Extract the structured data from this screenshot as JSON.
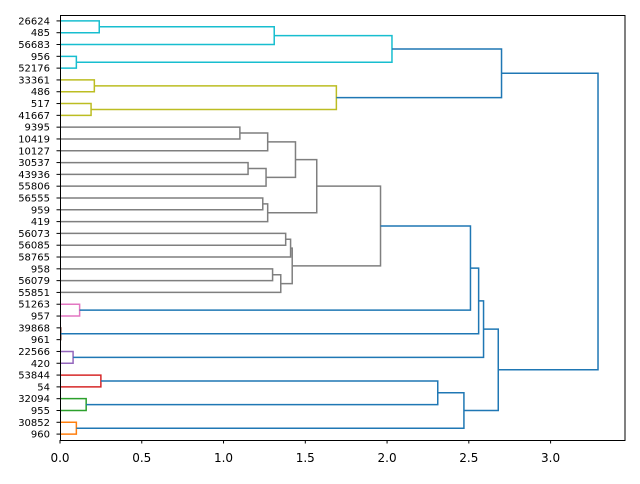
{
  "chart_data": {
    "type": "dendrogram",
    "orientation": "right",
    "xlim": [
      0,
      3.455
    ],
    "xticks": [
      0.0,
      0.5,
      1.0,
      1.5,
      2.0,
      2.5,
      3.0
    ],
    "xtick_labels": [
      "0.0",
      "0.5",
      "1.0",
      "1.5",
      "2.0",
      "2.5",
      "3.0"
    ],
    "leaves": [
      "26624",
      "485",
      "56683",
      "956",
      "52176",
      "33361",
      "486",
      "517",
      "41667",
      "9395",
      "10419",
      "10127",
      "30537",
      "43936",
      "55806",
      "56555",
      "959",
      "419",
      "56073",
      "56085",
      "58765",
      "958",
      "56079",
      "55851",
      "51263",
      "957",
      "39868",
      "961",
      "22566",
      "420",
      "53844",
      "54",
      "32094",
      "955",
      "30852",
      "960"
    ],
    "colors": {
      "cyan": "#17becf",
      "olive": "#bcbd22",
      "gray": "#7f7f7f",
      "pink": "#e377c2",
      "brown": "#8c564b",
      "purple": "#9467bd",
      "red": "#d62728",
      "green": "#2ca02c",
      "orange": "#ff7f0e",
      "blue": "#1f77b4"
    },
    "tree": {
      "h": 3.29,
      "c": "blue",
      "ch": [
        {
          "h": 2.7,
          "c": "blue",
          "ch": [
            {
              "h": 2.03,
              "c": "cyan",
              "ch": [
                {
                  "h": 1.31,
                  "c": "cyan",
                  "ch": [
                    {
                      "h": 0.24,
                      "c": "cyan",
                      "ch": [
                        0,
                        1
                      ]
                    },
                    2
                  ]
                },
                {
                  "h": 0.1,
                  "c": "cyan",
                  "ch": [
                    3,
                    4
                  ]
                }
              ]
            },
            {
              "h": 1.69,
              "c": "olive",
              "ch": [
                {
                  "h": 0.21,
                  "c": "olive",
                  "ch": [
                    5,
                    6
                  ]
                },
                {
                  "h": 0.19,
                  "c": "olive",
                  "ch": [
                    7,
                    8
                  ]
                }
              ]
            }
          ]
        },
        {
          "h": 2.68,
          "c": "blue",
          "ch": [
            {
              "h": 2.59,
              "c": "blue",
              "ch": [
                {
                  "h": 2.56,
                  "c": "blue",
                  "ch": [
                    {
                      "h": 2.51,
                      "c": "blue",
                      "ch": [
                        {
                          "h": 1.96,
                          "c": "gray",
                          "ch": [
                            {
                              "h": 1.57,
                              "c": "gray",
                              "ch": [
                                {
                                  "h": 1.44,
                                  "c": "gray",
                                  "ch": [
                                    {
                                      "h": 1.27,
                                      "c": "gray",
                                      "ch": [
                                        {
                                          "h": 1.1,
                                          "c": "gray",
                                          "ch": [
                                            9,
                                            10
                                          ]
                                        },
                                        11
                                      ]
                                    },
                                    {
                                      "h": 1.26,
                                      "c": "gray",
                                      "ch": [
                                        {
                                          "h": 1.15,
                                          "c": "gray",
                                          "ch": [
                                            12,
                                            13
                                          ]
                                        },
                                        14
                                      ]
                                    }
                                  ]
                                },
                                {
                                  "h": 1.27,
                                  "c": "gray",
                                  "ch": [
                                    {
                                      "h": 1.24,
                                      "c": "gray",
                                      "ch": [
                                        15,
                                        16
                                      ]
                                    },
                                    17
                                  ]
                                }
                              ]
                            },
                            {
                              "h": 1.42,
                              "c": "gray",
                              "ch": [
                                {
                                  "h": 1.41,
                                  "c": "gray",
                                  "ch": [
                                    {
                                      "h": 1.38,
                                      "c": "gray",
                                      "ch": [
                                        18,
                                        19
                                      ]
                                    },
                                    20
                                  ]
                                },
                                {
                                  "h": 1.35,
                                  "c": "gray",
                                  "ch": [
                                    {
                                      "h": 1.3,
                                      "c": "gray",
                                      "ch": [
                                        21,
                                        22
                                      ]
                                    },
                                    23
                                  ]
                                }
                              ]
                            }
                          ]
                        },
                        {
                          "h": 0.12,
                          "c": "pink",
                          "ch": [
                            24,
                            25
                          ]
                        }
                      ]
                    },
                    {
                      "h": 0.005,
                      "c": "brown",
                      "ch": [
                        26,
                        27
                      ]
                    }
                  ]
                },
                {
                  "h": 0.08,
                  "c": "purple",
                  "ch": [
                    28,
                    29
                  ]
                }
              ]
            },
            {
              "h": 2.47,
              "c": "blue",
              "ch": [
                {
                  "h": 2.31,
                  "c": "blue",
                  "ch": [
                    {
                      "h": 0.25,
                      "c": "red",
                      "ch": [
                        30,
                        31
                      ]
                    },
                    {
                      "h": 0.16,
                      "c": "green",
                      "ch": [
                        32,
                        33
                      ]
                    }
                  ]
                },
                {
                  "h": 0.1,
                  "c": "orange",
                  "ch": [
                    34,
                    35
                  ]
                }
              ]
            }
          ]
        }
      ]
    }
  }
}
